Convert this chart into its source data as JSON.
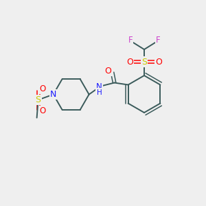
{
  "background_color": "#efefef",
  "bond_color": "#3a5a5a",
  "atom_colors": {
    "N": "#1a1aff",
    "S": "#cccc00",
    "O": "#ff0000",
    "F": "#cc44cc"
  },
  "figsize": [
    3.0,
    3.0
  ],
  "dpi": 100
}
